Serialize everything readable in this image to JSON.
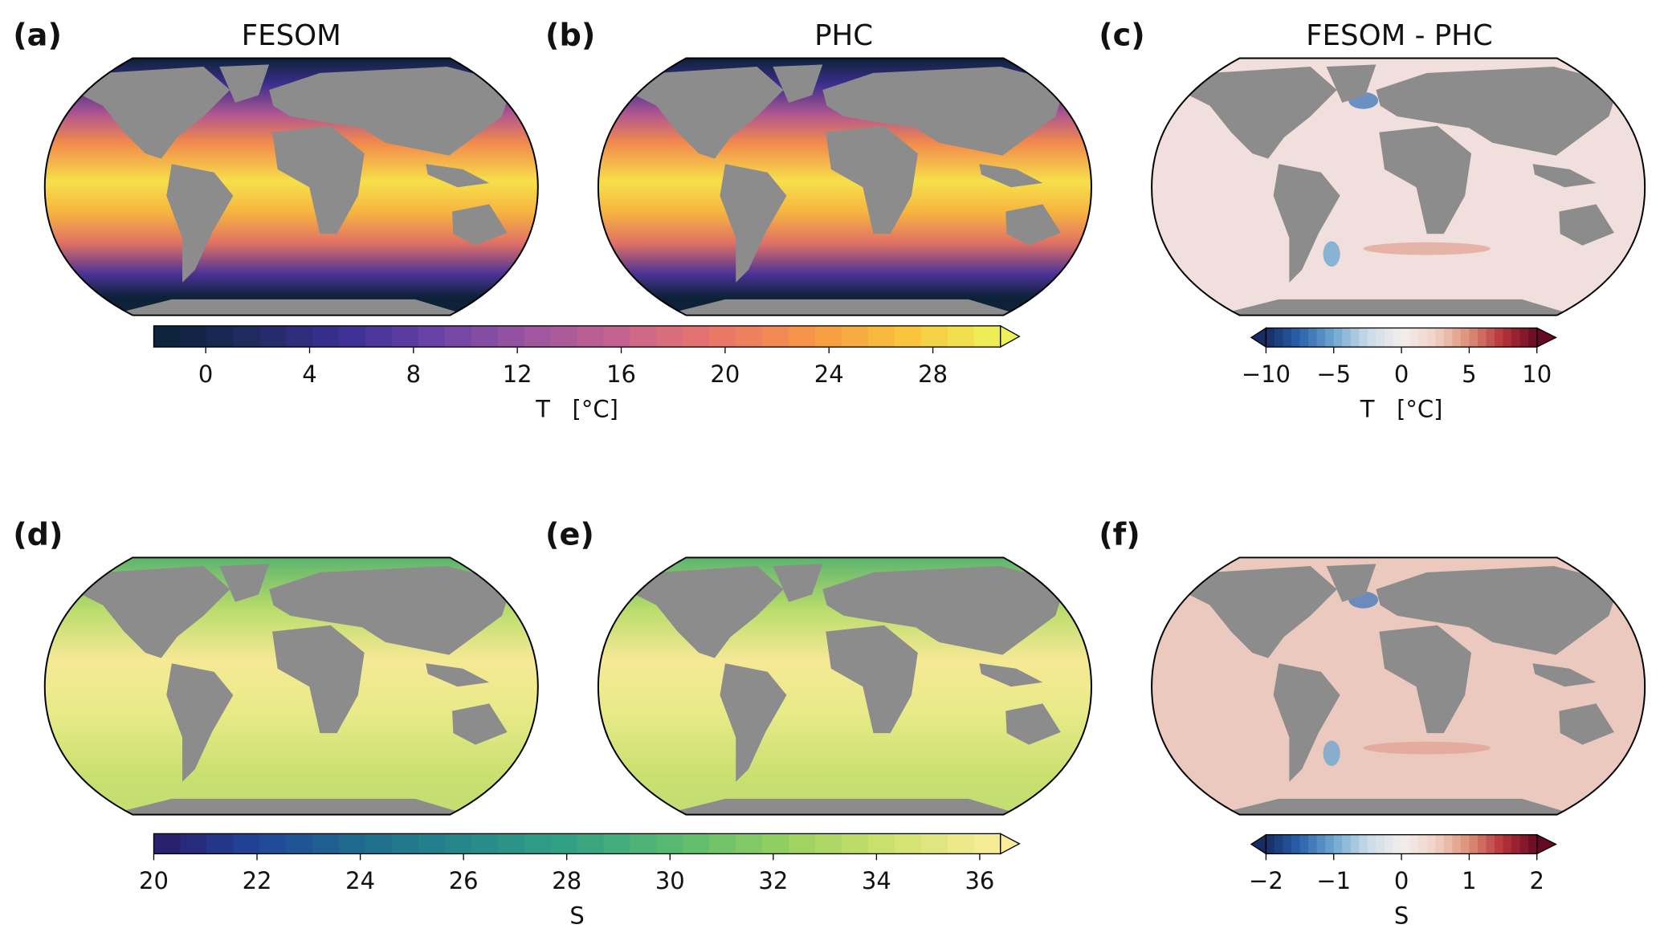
{
  "panels": [
    {
      "label": "(a)",
      "title": "FESOM"
    },
    {
      "label": "(b)",
      "title": "PHC"
    },
    {
      "label": "(c)",
      "title": "FESOM - PHC"
    },
    {
      "label": "(d)"
    },
    {
      "label": "(e)"
    },
    {
      "label": "(f)"
    }
  ],
  "colorbars": [
    {
      "label": "T   [°C]",
      "lim": [
        -2,
        30.6
      ],
      "ticks": [
        0,
        4,
        8,
        12,
        16,
        20,
        24,
        28
      ],
      "extend": "max",
      "colors": [
        "#0b2237",
        "#1f2a5e",
        "#3a2f93",
        "#6a43a6",
        "#9c56a0",
        "#c9648f",
        "#ea7668",
        "#f79845",
        "#f8c43c",
        "#eef25a"
      ]
    },
    {
      "label": "T   [°C]",
      "lim": [
        -10,
        10
      ],
      "ticks": [
        {
          "value": -10,
          "label": "−10"
        },
        {
          "value": -5,
          "label": "−5"
        },
        0,
        5,
        10
      ],
      "extend": "both",
      "colors": [
        "#152d62",
        "#2a62ad",
        "#6fa7cf",
        "#c9dbe8",
        "#f2eeed",
        "#f2d2c6",
        "#dc8f76",
        "#b6313a",
        "#650a22"
      ]
    },
    {
      "label": "S",
      "lim": [
        20,
        36.4
      ],
      "ticks": [
        20,
        22,
        24,
        26,
        28,
        30,
        32,
        34,
        36
      ],
      "extend": "max",
      "colors": [
        "#2a1a6a",
        "#21469a",
        "#1f6d8c",
        "#268a8a",
        "#34a383",
        "#5cbc6e",
        "#99d15f",
        "#d0e36e",
        "#fbec9a"
      ]
    },
    {
      "label": "S",
      "lim": [
        -2,
        2
      ],
      "ticks": [
        {
          "value": -2,
          "label": "−2"
        },
        {
          "value": -1,
          "label": "−1"
        },
        0,
        1,
        2
      ],
      "extend": "both",
      "colors": [
        "#152d62",
        "#2a62ad",
        "#6fa7cf",
        "#c9dbe8",
        "#f2eeed",
        "#f2d2c6",
        "#dc8f76",
        "#b6313a",
        "#650a22"
      ]
    }
  ]
}
